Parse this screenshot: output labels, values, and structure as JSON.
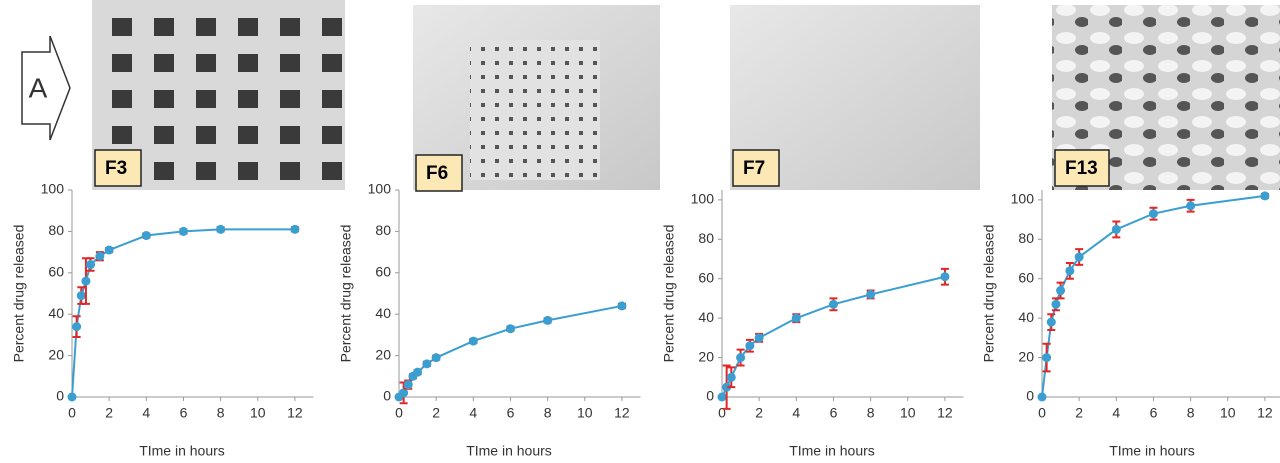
{
  "panel_label": "A",
  "chart_data": [
    {
      "type": "line",
      "label": "F3",
      "x_label": "TIme in hours",
      "y_label": "Percent drug released",
      "x": [
        0,
        0.25,
        0.5,
        0.75,
        1,
        1.5,
        2,
        4,
        6,
        8,
        12
      ],
      "values": [
        0,
        34,
        49,
        56,
        64,
        68,
        71,
        78,
        80,
        81,
        81
      ],
      "errors": [
        0,
        5,
        4,
        11,
        3,
        2,
        1,
        1,
        1,
        1,
        1
      ],
      "color": "#3a9fd0",
      "error_color": "#e02828",
      "xlim": [
        0,
        13
      ],
      "xticks": [
        0,
        2,
        4,
        6,
        8,
        10,
        12
      ],
      "ylim": [
        0,
        100
      ],
      "yticks": [
        0,
        20,
        40,
        60,
        80,
        100
      ]
    },
    {
      "type": "line",
      "label": "F6",
      "x_label": "TIme in hours",
      "y_label": "Percent drug released",
      "x": [
        0,
        0.25,
        0.5,
        0.75,
        1,
        1.5,
        2,
        4,
        6,
        8,
        12
      ],
      "values": [
        0,
        2,
        6,
        10,
        12,
        16,
        19,
        27,
        33,
        37,
        44
      ],
      "errors": [
        0,
        5,
        2,
        1,
        1,
        1,
        1,
        1,
        1,
        1,
        1
      ],
      "color": "#3a9fd0",
      "error_color": "#e02828",
      "xlim": [
        0,
        13
      ],
      "xticks": [
        0,
        2,
        4,
        6,
        8,
        10,
        12
      ],
      "ylim": [
        0,
        100
      ],
      "yticks": [
        0,
        20,
        40,
        60,
        80,
        100
      ]
    },
    {
      "type": "line",
      "label": "F7",
      "x_label": "TIme in hours",
      "y_label": "Percent drug released",
      "x": [
        0,
        0.25,
        0.5,
        1,
        1.5,
        2,
        4,
        6,
        8,
        12
      ],
      "values": [
        0,
        5,
        10,
        20,
        26,
        30,
        40,
        47,
        52,
        61
      ],
      "errors": [
        0,
        11,
        5,
        4,
        3,
        2,
        2,
        3,
        2,
        4
      ],
      "color": "#3a9fd0",
      "error_color": "#e02828",
      "xlim": [
        0,
        13
      ],
      "xticks": [
        0,
        2,
        4,
        6,
        8,
        10,
        12
      ],
      "ylim": [
        0,
        105
      ],
      "yticks": [
        0,
        20,
        40,
        60,
        80,
        100
      ]
    },
    {
      "type": "line",
      "label": "F13",
      "x_label": "TIme in hours",
      "y_label": "Percent drug released",
      "x": [
        0,
        0.25,
        0.5,
        0.75,
        1,
        1.5,
        2,
        4,
        6,
        8,
        12
      ],
      "values": [
        0,
        20,
        38,
        47,
        54,
        64,
        71,
        85,
        93,
        97,
        102
      ],
      "errors": [
        0,
        7,
        4,
        3,
        4,
        4,
        4,
        4,
        3,
        3,
        1
      ],
      "color": "#3a9fd0",
      "error_color": "#e02828",
      "xlim": [
        0,
        13
      ],
      "xticks": [
        0,
        2,
        4,
        6,
        8,
        10,
        12
      ],
      "ylim": [
        0,
        105
      ],
      "yticks": [
        0,
        20,
        40,
        60,
        80,
        100
      ]
    }
  ]
}
